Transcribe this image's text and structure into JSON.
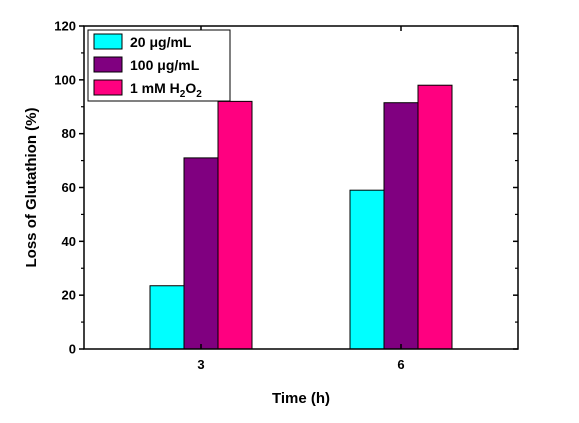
{
  "chart_data": {
    "type": "bar",
    "title": "",
    "xlabel": "Time (h)",
    "ylabel": "Loss of Glutathion (%)",
    "ylim": [
      0,
      120
    ],
    "yticks": [
      0,
      20,
      40,
      60,
      80,
      100,
      120
    ],
    "categories": [
      "3",
      "6"
    ],
    "grid": false,
    "legend_position": "top-left",
    "series": [
      {
        "name": "20 μg/mL",
        "color": "#00ffff",
        "values": [
          23.5,
          59
        ]
      },
      {
        "name": "100 μg/mL",
        "color": "#800080",
        "values": [
          71,
          91.5
        ]
      },
      {
        "name": "1 mM H2O2",
        "name_parts": [
          "1 mM H",
          "2",
          "O",
          "2"
        ],
        "color": "#ff0080",
        "values": [
          92,
          98
        ]
      }
    ]
  }
}
